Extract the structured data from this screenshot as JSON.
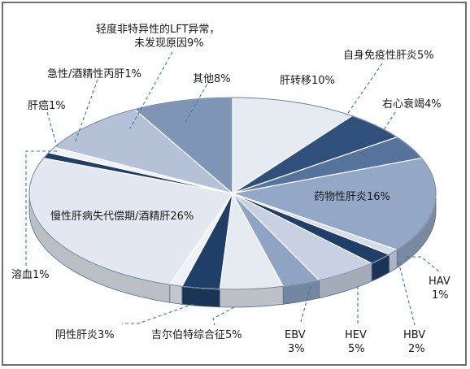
{
  "chart_data": {
    "type": "pie",
    "title": "",
    "slices": [
      {
        "label": "肝转移10%",
        "value": 10,
        "color": "#e6eaf1"
      },
      {
        "label": "自身免疫性肝炎5%",
        "value": 5,
        "color": "#2f507a"
      },
      {
        "label": "右心衰竭4%",
        "value": 4,
        "color": "#56739b"
      },
      {
        "label": "药物性肝炎16%",
        "value": 16,
        "color": "#93a7c6"
      },
      {
        "label": "HAV 1%",
        "value": 1,
        "color": "#d6ddea"
      },
      {
        "label": "HBV 2%",
        "value": 2,
        "color": "#1f3f68"
      },
      {
        "label": "HEV 5%",
        "value": 5,
        "color": "#c8d1e2"
      },
      {
        "label": "EBV 3%",
        "value": 3,
        "color": "#8fa4c3"
      },
      {
        "label": "吉尔伯特综合征5%",
        "value": 5,
        "color": "#e6eaf1"
      },
      {
        "label": "阴性肝炎3%",
        "value": 3,
        "color": "#1f3f68"
      },
      {
        "label": "溶血1%",
        "value": 1,
        "color": "#eef1f6"
      },
      {
        "label": "慢性肝病失代偿期/酒精肝26%",
        "value": 26,
        "color": "#e3e8f0"
      },
      {
        "label": "肝癌1%",
        "value": 1,
        "color": "#1f3f68"
      },
      {
        "label": "急性/酒精性丙肝1%",
        "value": 1,
        "color": "#eef1f6"
      },
      {
        "label": "轻度非特异性的LFT异常，未发现原因9%",
        "value": 9,
        "color": "#b4c1d7"
      },
      {
        "label": "其他8%",
        "value": 8,
        "color": "#7f95b6"
      }
    ]
  },
  "labels": {
    "lft_line1": "轻度非特异性的LFT异常，",
    "lft_line2": "未发现原因9%",
    "acute": "急性/酒精性丙肝1%",
    "cancer": "肝癌1%",
    "other": "其他8%",
    "metastasis": "肝转移10%",
    "autoimmune": "自身免疫性肝炎5%",
    "rhf": "右心衰竭4%",
    "drug": "药物性肝炎16%",
    "chronic": "慢性肝病失代偿期/酒精肝26%",
    "hemolysis": "溶血1%",
    "hav_name": "HAV",
    "hav_pct": "1%",
    "hbv_name": "HBV",
    "hbv_pct": "2%",
    "hev_name": "HEV",
    "hev_pct": "5%",
    "ebv_name": "EBV",
    "ebv_pct": "3%",
    "gilbert": "吉尔伯特综合征5%",
    "negative": "阴性肝炎3%"
  }
}
